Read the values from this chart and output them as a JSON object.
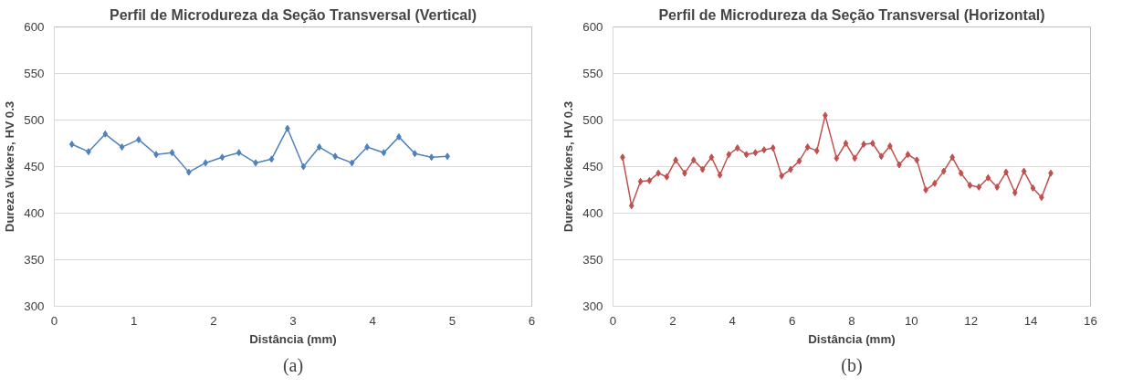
{
  "chart_data": [
    {
      "type": "line",
      "title": "Perfil de Microdureza da Seção Transversal (Vertical)",
      "xlabel": "Distância (mm)",
      "ylabel": "Dureza Vickers, HV 0.3",
      "xlim": [
        0,
        6
      ],
      "xticks": [
        0,
        1,
        2,
        3,
        4,
        5,
        6
      ],
      "ylim": [
        300,
        600
      ],
      "yticks": [
        300,
        350,
        400,
        450,
        500,
        550,
        600
      ],
      "grid": "y",
      "marker": "diamond",
      "line_style": "solid",
      "annotations": [
        "(a)"
      ],
      "series": [
        {
          "color": "#4f81bd",
          "x": [
            0.22,
            0.43,
            0.64,
            0.85,
            1.06,
            1.28,
            1.48,
            1.69,
            1.9,
            2.11,
            2.32,
            2.53,
            2.73,
            2.93,
            3.13,
            3.33,
            3.53,
            3.74,
            3.93,
            4.14,
            4.33,
            4.53,
            4.74,
            4.94
          ],
          "values": [
            474,
            466,
            485,
            471,
            479,
            463,
            465,
            444,
            454,
            460,
            465,
            454,
            458,
            491,
            450,
            471,
            461,
            454,
            471,
            465,
            482,
            464,
            460,
            461
          ]
        }
      ]
    },
    {
      "type": "line",
      "title": "Perfil de Microdureza da Seção Transversal (Horizontal)",
      "xlabel": "Distância (mm)",
      "ylabel": "Dureza Vickers, HV 0.3",
      "xlim": [
        0,
        16
      ],
      "xticks": [
        0,
        2,
        4,
        6,
        8,
        10,
        12,
        14,
        16
      ],
      "ylim": [
        300,
        600
      ],
      "yticks": [
        300,
        350,
        400,
        450,
        500,
        550,
        600
      ],
      "grid": "y",
      "marker": "diamond",
      "line_style": "solid",
      "annotations": [
        "(b)"
      ],
      "series": [
        {
          "color": "#c0504d",
          "x": [
            0.32,
            0.62,
            0.92,
            1.22,
            1.52,
            1.8,
            2.1,
            2.4,
            2.7,
            3.0,
            3.3,
            3.58,
            3.88,
            4.17,
            4.47,
            4.77,
            5.06,
            5.36,
            5.65,
            5.95,
            6.24,
            6.52,
            6.83,
            7.11,
            7.49,
            7.8,
            8.1,
            8.4,
            8.7,
            8.99,
            9.28,
            9.59,
            9.88,
            10.18,
            10.48,
            10.78,
            11.08,
            11.37,
            11.66,
            11.96,
            12.26,
            12.57,
            12.87,
            13.17,
            13.47,
            13.77,
            14.07,
            14.36,
            14.67
          ],
          "values": [
            460,
            408,
            434,
            435,
            443,
            439,
            457,
            443,
            457,
            447,
            460,
            441,
            463,
            470,
            463,
            465,
            468,
            470,
            440,
            447,
            456,
            471,
            467,
            505,
            459,
            475,
            459,
            474,
            475,
            461,
            472,
            452,
            463,
            457,
            425,
            432,
            445,
            460,
            443,
            430,
            428,
            438,
            428,
            444,
            422,
            445,
            427,
            417,
            443
          ]
        }
      ]
    }
  ]
}
